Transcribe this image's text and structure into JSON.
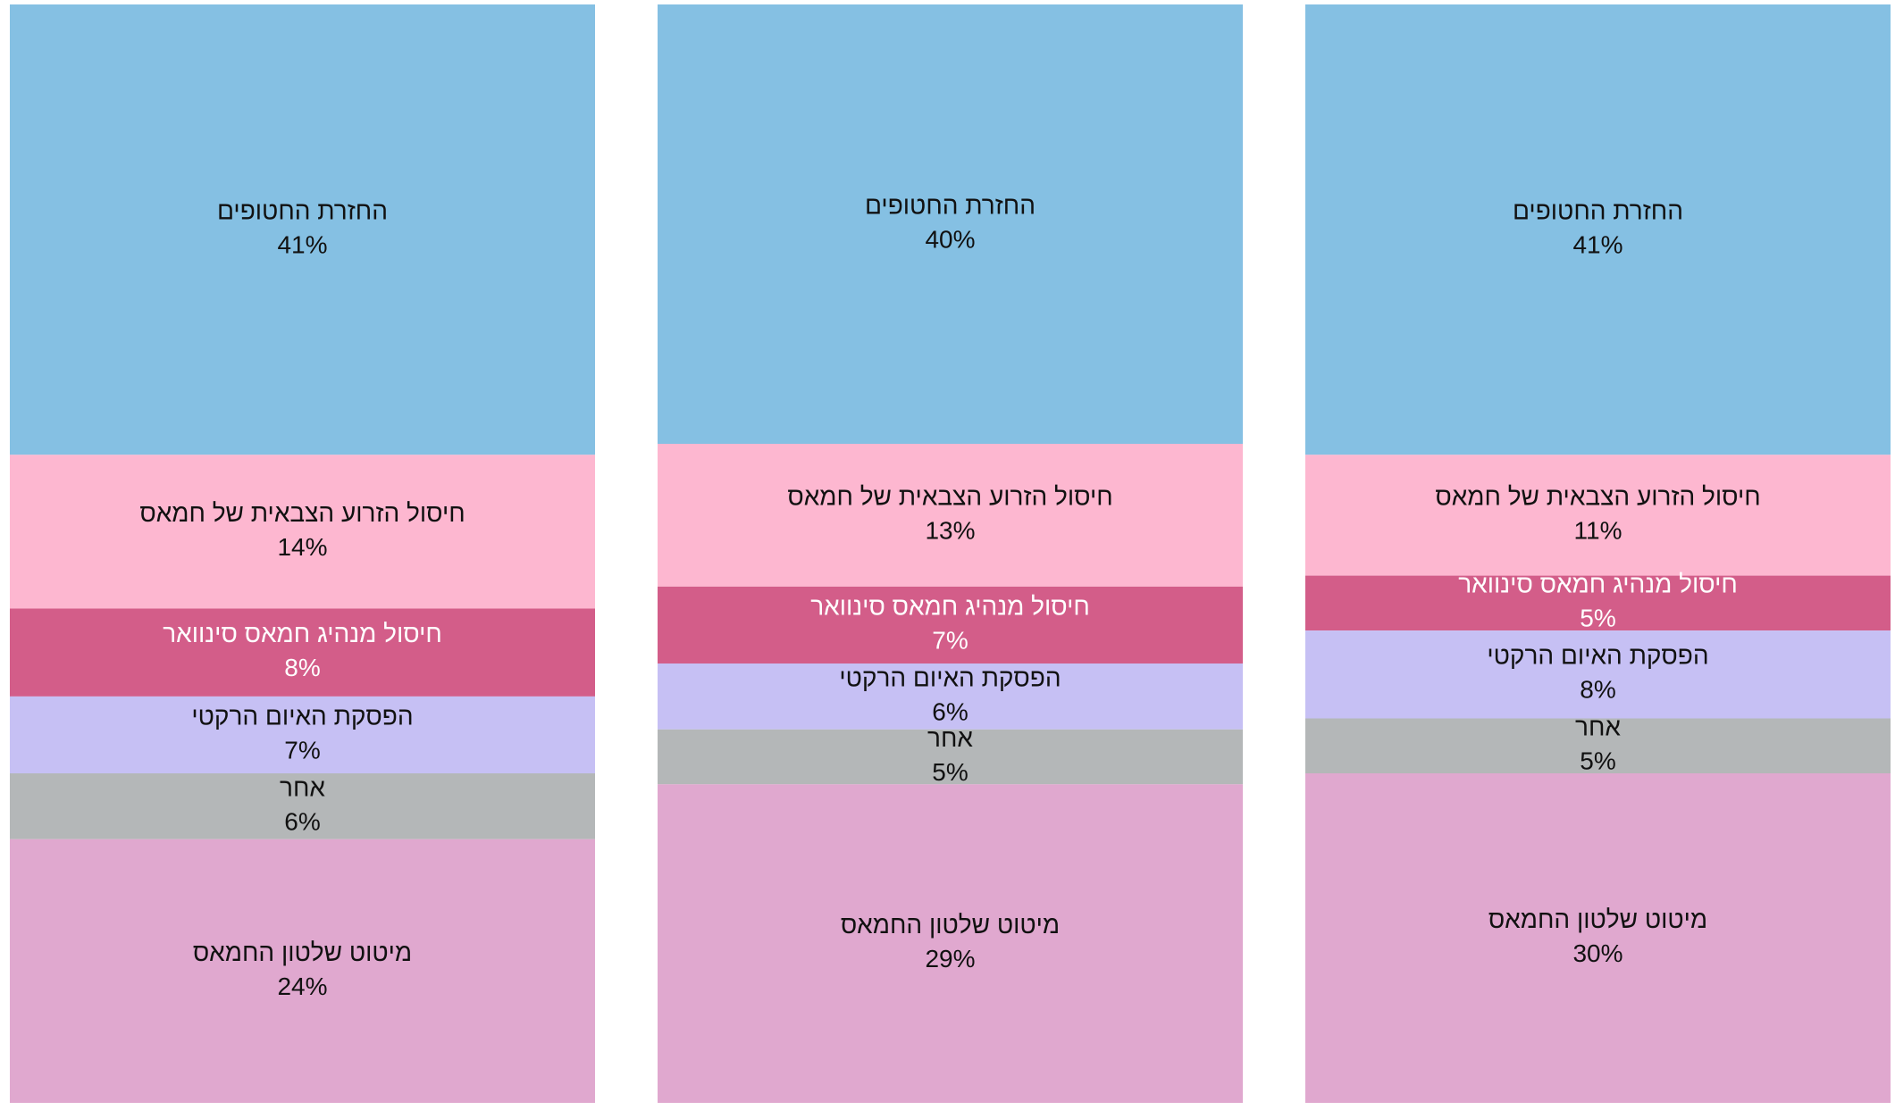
{
  "chart_data": {
    "type": "bar",
    "stacked": true,
    "categories": [
      null,
      null,
      null
    ],
    "ylim": [
      0,
      100
    ],
    "series": [
      {
        "name": "החזרת החטופים",
        "color": "#85c0e3",
        "label_color": "#111111",
        "values": [
          41,
          40,
          41
        ],
        "value_labels": [
          "41%",
          "40%",
          "41%"
        ]
      },
      {
        "name": "חיסול הזרוע הצבאית של חמאס",
        "color": "#fdb7d0",
        "label_color": "#111111",
        "values": [
          14,
          13,
          11
        ],
        "value_labels": [
          "14%",
          "13%",
          "11%"
        ]
      },
      {
        "name": "חיסול מנהיג חמאס סינוואר",
        "color": "#d35d89",
        "label_color": "#ffffff",
        "values": [
          8,
          7,
          5
        ],
        "value_labels": [
          "8%",
          "7%",
          "5%"
        ]
      },
      {
        "name": "הפסקת האיום הרקטי",
        "color": "#c6c0f4",
        "label_color": "#111111",
        "values": [
          7,
          6,
          8
        ],
        "value_labels": [
          "7%",
          "6%",
          "8%"
        ]
      },
      {
        "name": "אחר",
        "color": "#b4b7b8",
        "label_color": "#111111",
        "values": [
          6,
          5,
          5
        ],
        "value_labels": [
          "6%",
          "5%",
          "5%"
        ]
      },
      {
        "name": "מיטוט שלטון החמאס",
        "color": "#e0a8cf",
        "label_color": "#111111",
        "values": [
          24,
          29,
          30
        ],
        "value_labels": [
          "24%",
          "29%",
          "30%"
        ]
      }
    ]
  }
}
